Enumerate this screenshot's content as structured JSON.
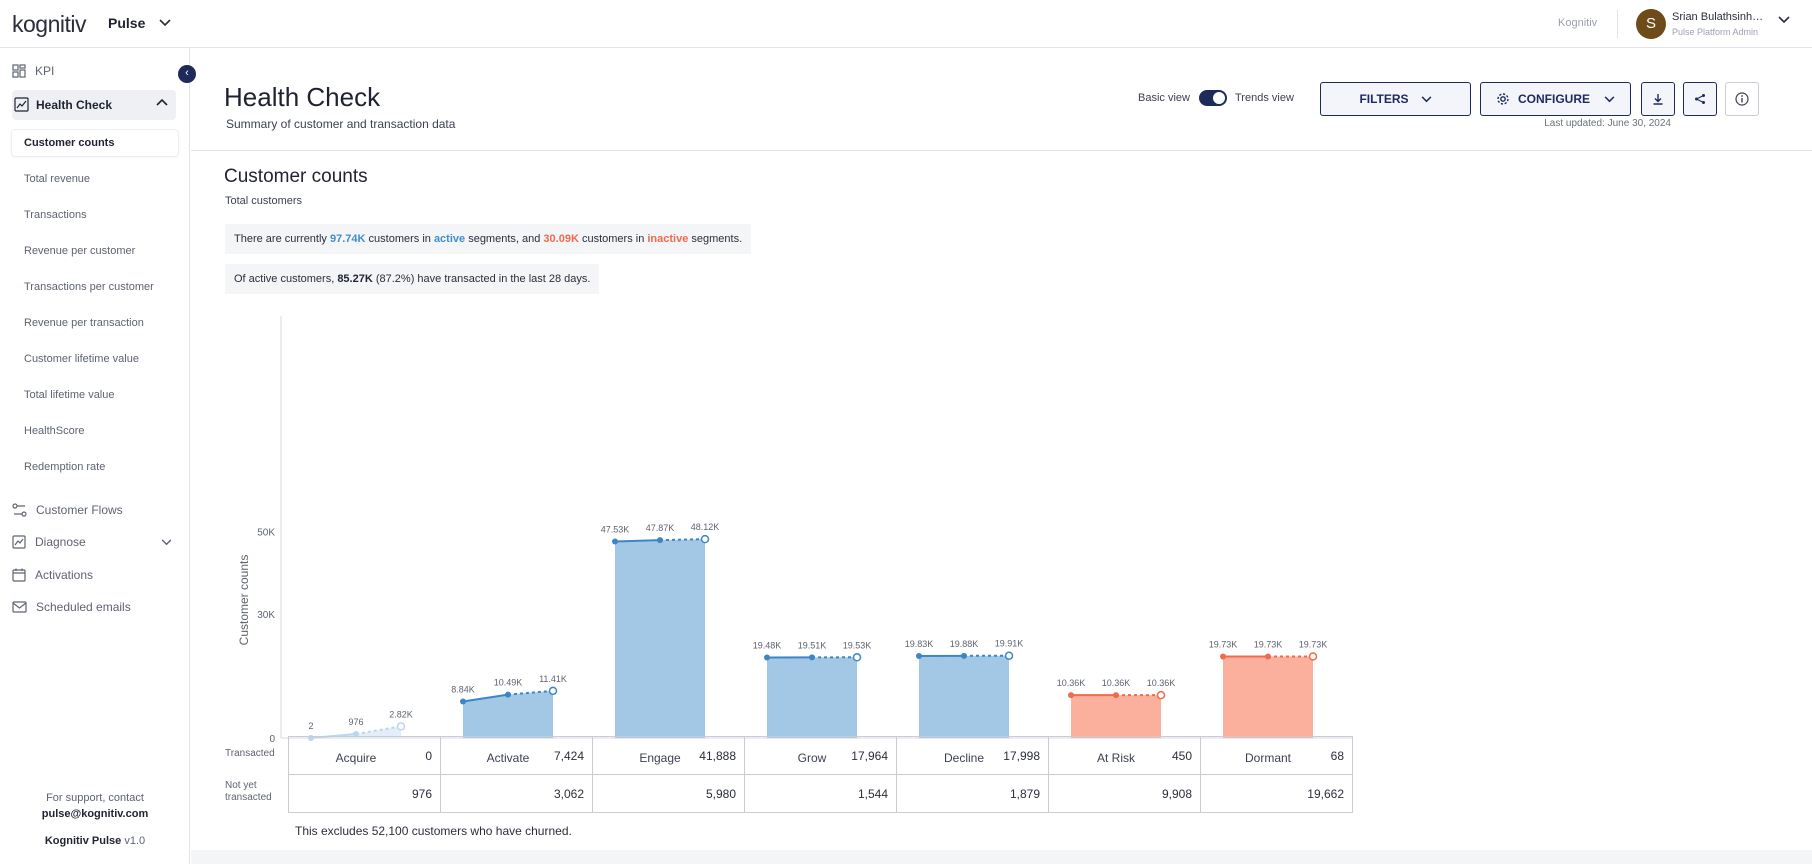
{
  "header": {
    "logo": "kognitiv",
    "product": "Pulse",
    "org_link": "Kognitiv",
    "user_initial": "S",
    "user_name": "Srian Bulathsinhala",
    "user_role": "Pulse Platform Admin"
  },
  "sidebar": {
    "kpi": "KPI",
    "health_check": "Health Check",
    "health_items": [
      "Customer counts",
      "Total revenue",
      "Transactions",
      "Revenue per customer",
      "Transactions per customer",
      "Revenue per transaction",
      "Customer lifetime value",
      "Total lifetime value",
      "HealthScore",
      "Redemption rate"
    ],
    "customer_flows": "Customer Flows",
    "diagnose": "Diagnose",
    "activations": "Activations",
    "scheduled_emails": "Scheduled emails",
    "support_text": "For support, contact",
    "support_email": "pulse@kognitiv.com",
    "version_name": "Kognitiv Pulse",
    "version": "v1.0"
  },
  "page": {
    "title": "Health Check",
    "subtitle": "Summary of customer and transaction data",
    "basic_view": "Basic view",
    "trends_view": "Trends view",
    "filters": "FILTERS",
    "configure": "CONFIGURE",
    "last_updated": "Last updated: June 30, 2024"
  },
  "section": {
    "title": "Customer counts",
    "subtitle": "Total customers",
    "summary1": {
      "a": "There are currently ",
      "active_count": "97.74K",
      "b": " customers in ",
      "active_word": "active",
      "c": " segments, and ",
      "inactive_count": "30.09K",
      "d": " customers in ",
      "inactive_word": "inactive",
      "e": " segments."
    },
    "summary2": {
      "a": "Of active customers, ",
      "count": "85.27K",
      "b": " (87.2%) have transacted in the last 28 days."
    }
  },
  "chart_data": {
    "type": "bar",
    "ylabel": "Customer counts",
    "yticks": [
      0,
      30000,
      50000
    ],
    "ytick_labels": [
      "0",
      "30K",
      "50K"
    ],
    "categories": [
      "Acquire",
      "Activate",
      "Engage",
      "Grow",
      "Decline",
      "At Risk",
      "Dormant"
    ],
    "segment_status": [
      "active",
      "active",
      "active",
      "active",
      "active",
      "inactive",
      "inactive"
    ],
    "trend_points": [
      {
        "values": [
          2,
          976,
          2820
        ],
        "labels": [
          "2",
          "976",
          "2.82K"
        ]
      },
      {
        "values": [
          8840,
          10490,
          11410
        ],
        "labels": [
          "8.84K",
          "10.49K",
          "11.41K"
        ]
      },
      {
        "values": [
          47530,
          47870,
          48120
        ],
        "labels": [
          "47.53K",
          "47.87K",
          "48.12K"
        ]
      },
      {
        "values": [
          19480,
          19510,
          19530
        ],
        "labels": [
          "19.48K",
          "19.51K",
          "19.53K"
        ]
      },
      {
        "values": [
          19830,
          19880,
          19910
        ],
        "labels": [
          "19.83K",
          "19.88K",
          "19.91K"
        ]
      },
      {
        "values": [
          10360,
          10360,
          10360
        ],
        "labels": [
          "10.36K",
          "10.36K",
          "10.36K"
        ]
      },
      {
        "values": [
          19730,
          19730,
          19730
        ],
        "labels": [
          "19.73K",
          "19.73K",
          "19.73K"
        ]
      }
    ],
    "colors": {
      "active_bar": "#a3c8e6",
      "active_line": "#3d86c6",
      "inactive_bar": "#fbb09d",
      "inactive_line": "#f06a4c",
      "acquire_bar": "#e3eef8",
      "acquire_line": "#bcd6ee"
    }
  },
  "table": {
    "row_labels": [
      "Transacted",
      "Not yet transacted"
    ],
    "transacted": [
      "0",
      "7,424",
      "41,888",
      "17,964",
      "17,998",
      "450",
      "68"
    ],
    "not_yet": [
      "976",
      "3,062",
      "5,980",
      "1,544",
      "1,879",
      "9,908",
      "19,662"
    ],
    "note": "This excludes 52,100 customers who have churned."
  }
}
